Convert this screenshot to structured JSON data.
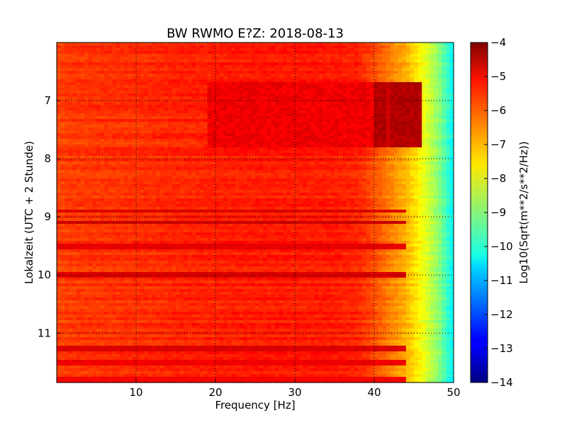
{
  "chart_data": {
    "type": "heatmap",
    "title": "BW RWMO E?Z: 2018-08-13",
    "xlabel": "Frequency [Hz]",
    "ylabel": "Lokalzeit (UTC + 2 Stunde)",
    "xlim": [
      0,
      50
    ],
    "ylim": [
      11.85,
      6.0
    ],
    "y_inverted": true,
    "x_ticks": [
      10,
      20,
      30,
      40,
      50
    ],
    "x_tick_labels": [
      "10",
      "20",
      "30",
      "40",
      "50"
    ],
    "y_ticks": [
      7,
      8,
      9,
      10,
      11
    ],
    "y_tick_labels": [
      "7",
      "8",
      "9",
      "10",
      "11"
    ],
    "grid": true,
    "colormap": "jet",
    "colorbar": {
      "label": "Log10(Sqrt(m**2/s**2/Hz))",
      "range": [
        -14,
        -4
      ],
      "ticks": [
        -4,
        -5,
        -6,
        -7,
        -8,
        -9,
        -10,
        -11,
        -12,
        -13,
        -14
      ],
      "tick_labels": [
        "−4",
        "−5",
        "−6",
        "−7",
        "−8",
        "−9",
        "−10",
        "−11",
        "−12",
        "−13",
        "−14"
      ]
    },
    "spectrum_profile": {
      "frequency": [
        0,
        2,
        5,
        10,
        15,
        20,
        25,
        30,
        35,
        38,
        40,
        42,
        44,
        46,
        48,
        50
      ],
      "log_amplitude": [
        -5.9,
        -5.8,
        -5.75,
        -5.7,
        -5.6,
        -5.55,
        -5.5,
        -5.5,
        -5.5,
        -5.6,
        -6.0,
        -6.5,
        -7.0,
        -7.8,
        -8.8,
        -10.3
      ]
    },
    "features": [
      {
        "type": "elevated_block",
        "t_range": [
          6.7,
          7.8
        ],
        "f_range": [
          19,
          46
        ],
        "value": -5.1
      },
      {
        "type": "line",
        "frequency": 41.7,
        "t_range": [
          6.8,
          7.8
        ],
        "value": -4.8
      },
      {
        "type": "band",
        "time": 8.9,
        "value": -4.9
      },
      {
        "type": "band",
        "time": 9.1,
        "value": -4.7
      },
      {
        "type": "band",
        "time": 9.5,
        "value": -5.0
      },
      {
        "type": "band",
        "time": 10.0,
        "value": -4.9
      },
      {
        "type": "band",
        "time": 11.25,
        "value": -4.9
      },
      {
        "type": "band",
        "time": 11.5,
        "value": -5.1
      },
      {
        "type": "band",
        "time": 11.8,
        "value": -5.2
      }
    ]
  }
}
